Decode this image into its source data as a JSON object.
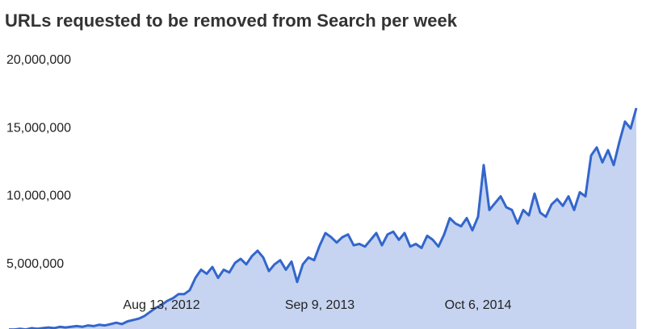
{
  "chart_data": {
    "type": "area",
    "title": "URLs requested to be removed from Search per week",
    "categories": [
      null,
      null,
      null,
      null,
      null,
      null,
      null,
      null,
      null,
      null,
      null,
      null,
      null,
      null,
      null,
      null,
      null,
      null,
      null,
      null,
      null,
      null,
      null,
      null,
      null,
      null,
      null,
      "Aug 13, 2012",
      null,
      null,
      null,
      null,
      null,
      null,
      null,
      null,
      null,
      null,
      null,
      null,
      null,
      null,
      null,
      null,
      null,
      null,
      null,
      null,
      null,
      null,
      null,
      null,
      null,
      null,
      null,
      "Sep 9, 2013",
      null,
      null,
      null,
      null,
      null,
      null,
      null,
      null,
      null,
      null,
      null,
      null,
      null,
      null,
      null,
      null,
      null,
      null,
      null,
      null,
      null,
      null,
      null,
      null,
      null,
      null,
      null,
      "Oct 6, 2014",
      null,
      null,
      null,
      null,
      null,
      null,
      null,
      null,
      null,
      null,
      null,
      null,
      null,
      null,
      null,
      null,
      null,
      null,
      null,
      null,
      null,
      null,
      null,
      null,
      null,
      null,
      null,
      null
    ],
    "values": [
      200000,
      200000,
      250000,
      200000,
      300000,
      250000,
      300000,
      350000,
      300000,
      400000,
      350000,
      400000,
      450000,
      400000,
      500000,
      450000,
      550000,
      500000,
      600000,
      700000,
      600000,
      800000,
      900000,
      1000000,
      1200000,
      1500000,
      1800000,
      2000000,
      2300000,
      2500000,
      2800000,
      2800000,
      3100000,
      4000000,
      4600000,
      4300000,
      4800000,
      4000000,
      4600000,
      4400000,
      5100000,
      5400000,
      5000000,
      5600000,
      6000000,
      5500000,
      4500000,
      5000000,
      5300000,
      4600000,
      5200000,
      3700000,
      5000000,
      5500000,
      5300000,
      6400000,
      7300000,
      7000000,
      6600000,
      7000000,
      7200000,
      6400000,
      6500000,
      6300000,
      6800000,
      7300000,
      6400000,
      7200000,
      7400000,
      6800000,
      7300000,
      6300000,
      6500000,
      6200000,
      7100000,
      6800000,
      6300000,
      7200000,
      8400000,
      8000000,
      7800000,
      8400000,
      7500000,
      8500000,
      12300000,
      9000000,
      9500000,
      10000000,
      9200000,
      9000000,
      8000000,
      9000000,
      8600000,
      10200000,
      8800000,
      8500000,
      9400000,
      9800000,
      9300000,
      10000000,
      9000000,
      10300000,
      10000000,
      13000000,
      13600000,
      12500000,
      13400000,
      12300000,
      14000000,
      15500000,
      15000000,
      16500000
    ],
    "color": "#3366cc",
    "fill": "#c6d4f1",
    "ylim": [
      0,
      20000000
    ],
    "yticks": [
      {
        "value": 5000000,
        "label": "5,000,000"
      },
      {
        "value": 10000000,
        "label": "10,000,000"
      },
      {
        "value": 15000000,
        "label": "15,000,000"
      },
      {
        "value": 20000000,
        "label": "20,000,000"
      }
    ],
    "grid": false
  }
}
